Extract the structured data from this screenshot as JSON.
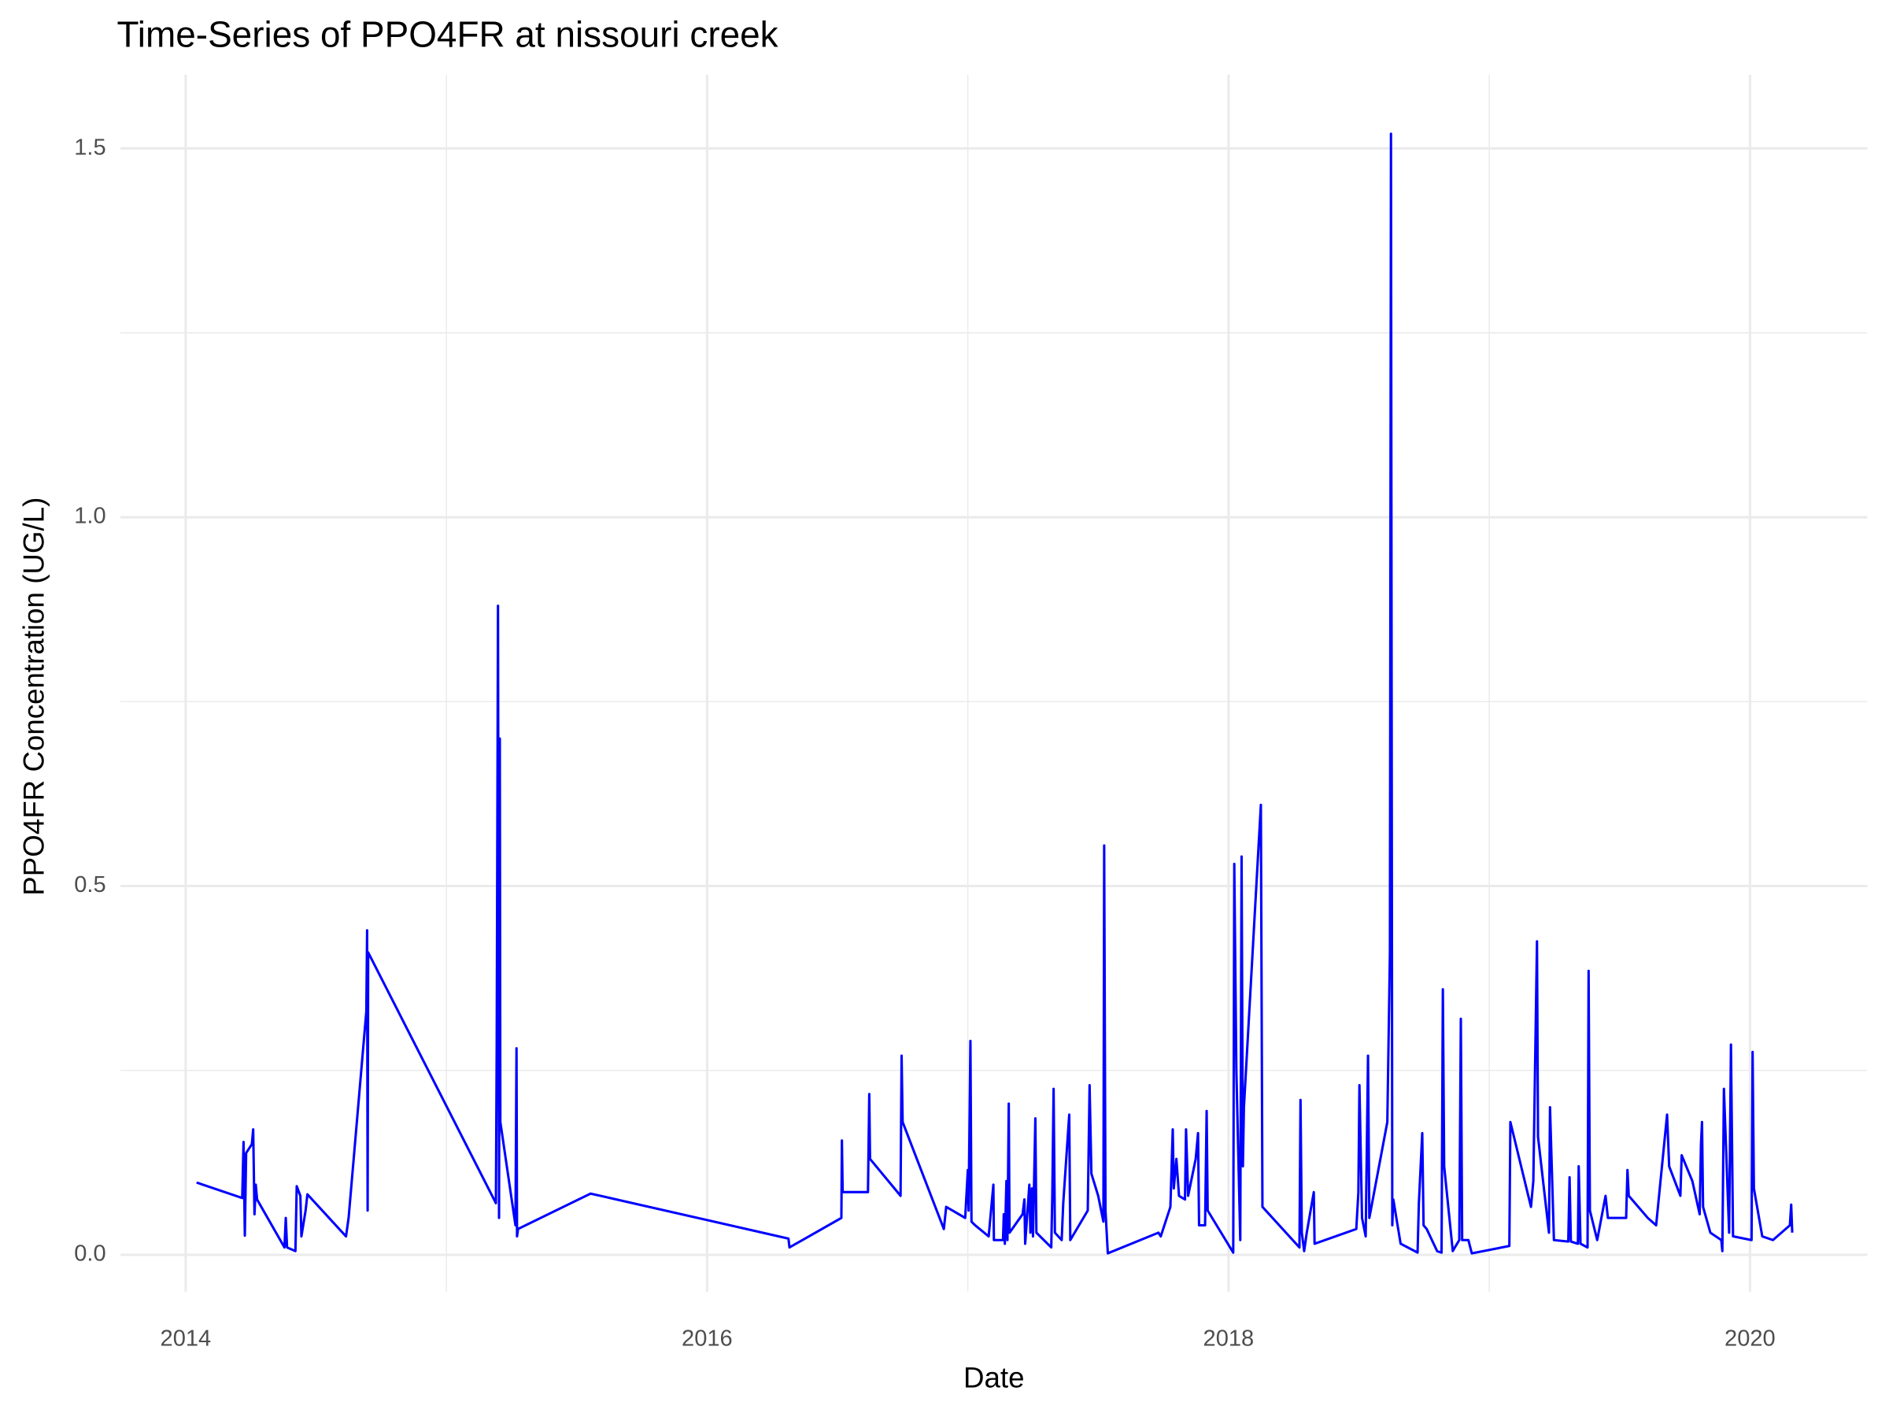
{
  "chart_data": {
    "type": "line",
    "title": "Time-Series of PPO4FR at nissouri creek",
    "x_label": "Date",
    "y_label": "PPO4FR Concentration (UG/L)",
    "grid": true,
    "xlim": [
      2013.75,
      2020.45
    ],
    "ylim": [
      -0.05,
      1.6
    ],
    "xticks": [
      2014,
      2016,
      2018,
      2020
    ],
    "yticks": [
      {
        "value": 0,
        "label": "0.0"
      },
      0.5,
      {
        "value": 1,
        "label": "1.0"
      },
      1.5
    ],
    "x_minor_ticks": [
      2015,
      2017,
      2019
    ],
    "y_minor_ticks": [
      0.25,
      0.75,
      1.25
    ],
    "x": [
      2014.042,
      2014.217,
      2014.222,
      2014.227,
      2014.232,
      2014.254,
      2014.259,
      2014.264,
      2014.269,
      2014.274,
      2014.379,
      2014.384,
      2014.389,
      2014.421,
      2014.426,
      2014.44,
      2014.444,
      2014.46,
      2014.467,
      2014.615,
      2014.625,
      2014.693,
      2014.696,
      2014.698,
      2014.7,
      2015.19,
      2015.193,
      2015.198,
      2015.202,
      2015.205,
      2015.207,
      2015.265,
      2015.269,
      2015.271,
      2015.275,
      2015.553,
      2016.312,
      2016.316,
      2016.515,
      2016.517,
      2016.52,
      2016.617,
      2016.622,
      2016.625,
      2016.742,
      2016.746,
      2016.75,
      2016.908,
      2016.917,
      2016.99,
      2017.0,
      2017.003,
      2017.01,
      2017.014,
      2017.028,
      2017.08,
      2017.098,
      2017.1,
      2017.135,
      2017.138,
      2017.142,
      2017.148,
      2017.152,
      2017.157,
      2017.16,
      2017.21,
      2017.217,
      2017.22,
      2017.236,
      2017.24,
      2017.246,
      2017.25,
      2017.259,
      2017.263,
      2017.32,
      2017.324,
      2017.329,
      2017.334,
      2017.36,
      2017.366,
      2017.389,
      2017.393,
      2017.46,
      2017.467,
      2017.474,
      2017.5,
      2017.52,
      2017.523,
      2017.528,
      2017.537,
      2017.731,
      2017.74,
      2017.777,
      2017.786,
      2017.79,
      2017.8,
      2017.81,
      2017.833,
      2017.837,
      2017.845,
      2017.874,
      2017.883,
      2017.887,
      2017.91,
      2017.916,
      2017.92,
      2018.018,
      2018.022,
      2018.03,
      2018.045,
      2018.05,
      2018.055,
      2018.059,
      2018.124,
      2018.13,
      2018.272,
      2018.276,
      2018.281,
      2018.29,
      2018.3,
      2018.327,
      2018.33,
      2018.49,
      2018.498,
      2018.502,
      2018.512,
      2018.526,
      2018.535,
      2018.54,
      2018.609,
      2018.619,
      2018.623,
      2018.628,
      2018.632,
      2018.66,
      2018.725,
      2018.73,
      2018.743,
      2018.748,
      2018.76,
      2018.8,
      2018.817,
      2018.822,
      2018.827,
      2018.86,
      2018.868,
      2018.885,
      2018.891,
      2018.896,
      2018.92,
      2018.933,
      2019.077,
      2019.081,
      2019.16,
      2019.169,
      2019.183,
      2019.187,
      2019.229,
      2019.233,
      2019.248,
      2019.303,
      2019.308,
      2019.313,
      2019.34,
      2019.343,
      2019.35,
      2019.377,
      2019.381,
      2019.386,
      2019.414,
      2019.446,
      2019.455,
      2019.525,
      2019.53,
      2019.535,
      2019.608,
      2019.64,
      2019.682,
      2019.69,
      2019.733,
      2019.738,
      2019.779,
      2019.807,
      2019.812,
      2019.816,
      2019.82,
      2019.848,
      2019.89,
      2019.894,
      2019.9,
      2019.92,
      2019.927,
      2019.935,
      2020.006,
      2020.01,
      2020.015,
      2020.047,
      2020.088,
      2020.153,
      2020.158,
      2020.162
    ],
    "series": [
      {
        "color": "#0000ff",
        "values": [
          0.098,
          0.077,
          0.153,
          0.026,
          0.138,
          0.15,
          0.17,
          0.055,
          0.095,
          0.075,
          0.01,
          0.05,
          0.01,
          0.005,
          0.093,
          0.08,
          0.025,
          0.06,
          0.082,
          0.025,
          0.05,
          0.33,
          0.44,
          0.06,
          0.41,
          0.07,
          0.28,
          0.88,
          0.05,
          0.7,
          0.18,
          0.04,
          0.28,
          0.025,
          0.035,
          0.083,
          0.022,
          0.01,
          0.05,
          0.155,
          0.085,
          0.085,
          0.218,
          0.13,
          0.08,
          0.27,
          0.18,
          0.035,
          0.065,
          0.05,
          0.115,
          0.06,
          0.29,
          0.045,
          0.04,
          0.025,
          0.095,
          0.02,
          0.02,
          0.055,
          0.015,
          0.1,
          0.02,
          0.205,
          0.03,
          0.055,
          0.075,
          0.015,
          0.095,
          0.03,
          0.09,
          0.025,
          0.185,
          0.03,
          0.01,
          0.08,
          0.225,
          0.03,
          0.02,
          0.07,
          0.19,
          0.02,
          0.06,
          0.23,
          0.11,
          0.08,
          0.045,
          0.555,
          0.06,
          0.002,
          0.03,
          0.025,
          0.065,
          0.17,
          0.09,
          0.13,
          0.08,
          0.075,
          0.17,
          0.08,
          0.13,
          0.165,
          0.04,
          0.04,
          0.195,
          0.06,
          0.003,
          0.53,
          0.25,
          0.02,
          0.54,
          0.12,
          0.2,
          0.61,
          0.065,
          0.01,
          0.21,
          0.03,
          0.005,
          0.03,
          0.085,
          0.015,
          0.035,
          0.085,
          0.23,
          0.05,
          0.025,
          0.27,
          0.05,
          0.18,
          0.41,
          1.52,
          0.04,
          0.075,
          0.015,
          0.003,
          0.07,
          0.165,
          0.04,
          0.035,
          0.005,
          0.003,
          0.36,
          0.12,
          0.005,
          0.01,
          0.02,
          0.32,
          0.02,
          0.02,
          0.002,
          0.012,
          0.18,
          0.065,
          0.1,
          0.425,
          0.16,
          0.03,
          0.2,
          0.02,
          0.018,
          0.105,
          0.018,
          0.015,
          0.12,
          0.015,
          0.01,
          0.385,
          0.06,
          0.02,
          0.08,
          0.05,
          0.05,
          0.115,
          0.08,
          0.05,
          0.04,
          0.19,
          0.12,
          0.08,
          0.135,
          0.1,
          0.055,
          0.15,
          0.18,
          0.065,
          0.03,
          0.02,
          0.005,
          0.225,
          0.03,
          0.285,
          0.025,
          0.02,
          0.275,
          0.09,
          0.025,
          0.02,
          0.04,
          0.068,
          0.03
        ]
      }
    ]
  }
}
